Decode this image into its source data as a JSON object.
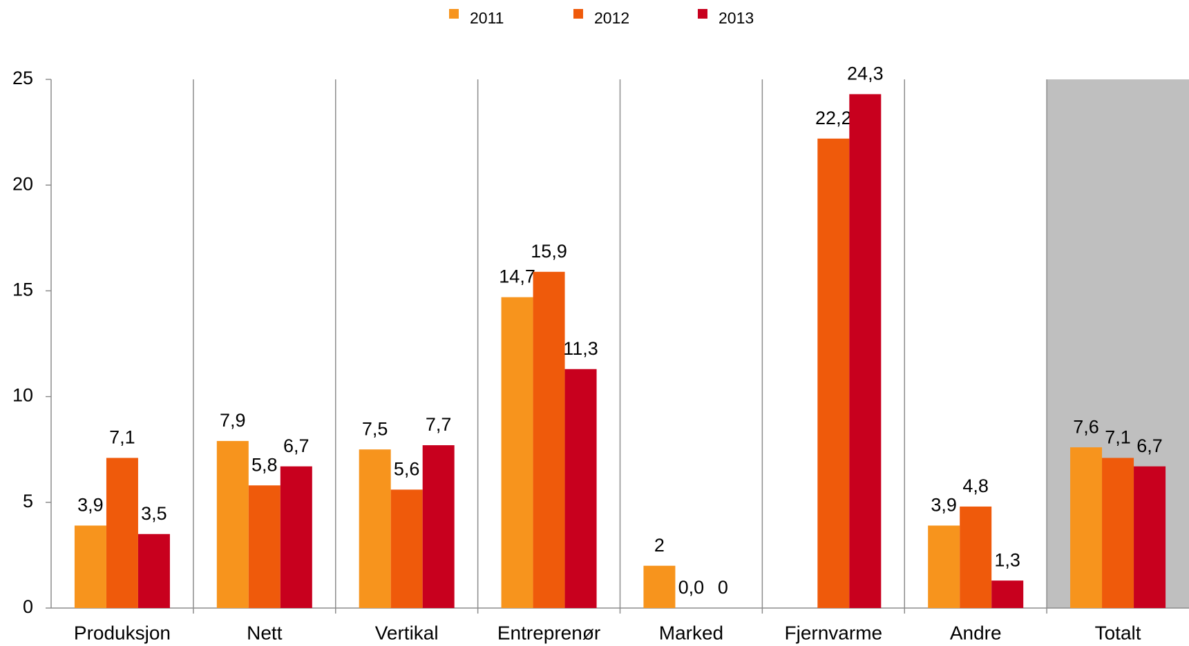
{
  "chart_data": {
    "type": "bar",
    "categories": [
      "Produksjon",
      "Nett",
      "Vertikal",
      "Entreprenør",
      "Marked",
      "Fjernvarme",
      "Andre",
      "Totalt"
    ],
    "series": [
      {
        "name": "2011",
        "color": "#f7941d",
        "values": [
          3.9,
          7.9,
          7.5,
          14.7,
          2,
          null,
          3.9,
          7.6
        ],
        "value_labels": [
          "3,9",
          "7,9",
          "7,5",
          "14,7",
          "2",
          null,
          "3,9",
          "7,6"
        ]
      },
      {
        "name": "2012",
        "color": "#ef5a0b",
        "values": [
          7.1,
          5.8,
          5.6,
          15.9,
          0.0,
          22.2,
          4.8,
          7.1
        ],
        "value_labels": [
          "7,1",
          "5,8",
          "5,6",
          "15,9",
          "0,0",
          "22,2",
          "4,8",
          "7,1"
        ]
      },
      {
        "name": "2013",
        "color": "#c8001e",
        "values": [
          3.5,
          6.7,
          7.7,
          11.3,
          0,
          24.3,
          1.3,
          6.7
        ],
        "value_labels": [
          "3,5",
          "6,7",
          "7,7",
          "11,3",
          "0",
          "24,3",
          "1,3",
          "6,7"
        ]
      }
    ],
    "ylim": [
      0,
      25
    ],
    "yticks": [
      0,
      5,
      10,
      15,
      20,
      25
    ],
    "legend": "top",
    "highlight_index": 7,
    "highlight_color": "#bfbfbf"
  }
}
